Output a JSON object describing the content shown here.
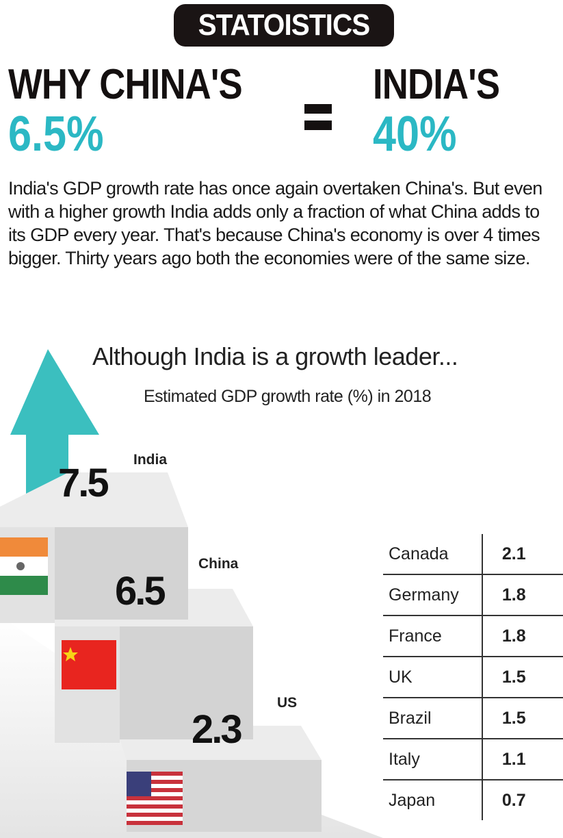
{
  "badge": "STATOISTICS",
  "headline": {
    "left_title": "WHY CHINA'S",
    "left_value": "6.5%",
    "right_title": "INDIA'S",
    "right_value": "40%"
  },
  "body_text": "India's GDP growth rate has once again overtaken China's. But even with a higher growth India adds only a fraction of what China adds to its GDP every year. That's because China's economy is over 4 times bigger. Thirty years ago both the economies were of the same size.",
  "colors": {
    "accent": "#2bb8c4",
    "arrow": "#3bbfbf",
    "step": "#dcdcdc"
  },
  "chart_data": {
    "type": "bar",
    "title": "Although India is a growth leader...",
    "subtitle": "Estimated GDP growth rate (%) in 2018",
    "categories": [
      "India",
      "China",
      "US"
    ],
    "values": [
      7.5,
      6.5,
      2.3
    ],
    "labels": [
      "7.5",
      "6.5",
      "2.3"
    ],
    "style": "staircase with flags",
    "table": {
      "rows": [
        {
          "country": "Canada",
          "value": "2.1"
        },
        {
          "country": "Germany",
          "value": "1.8"
        },
        {
          "country": "France",
          "value": "1.8"
        },
        {
          "country": "UK",
          "value": "1.5"
        },
        {
          "country": "Brazil",
          "value": "1.5"
        },
        {
          "country": "Italy",
          "value": "1.1"
        },
        {
          "country": "Japan",
          "value": "0.7"
        }
      ]
    }
  }
}
